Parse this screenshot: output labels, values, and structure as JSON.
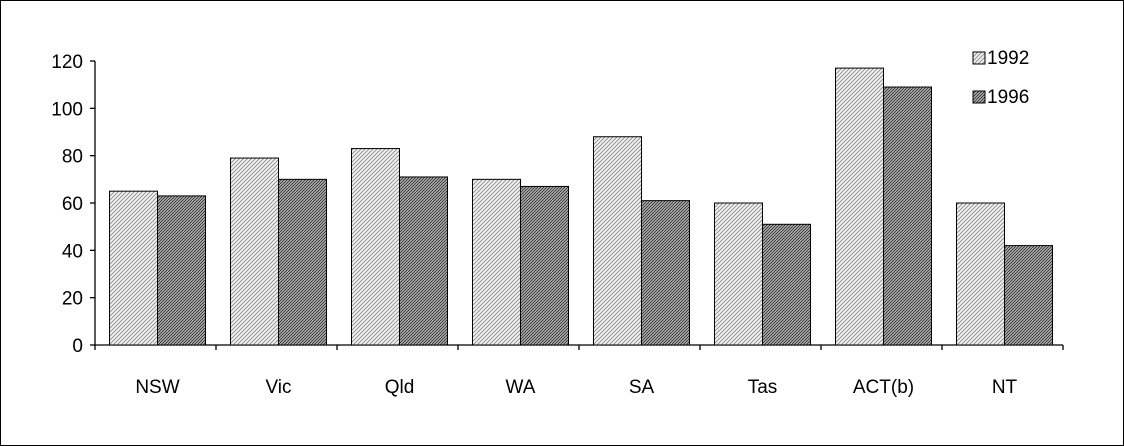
{
  "chart_data": {
    "type": "bar",
    "title": "",
    "xlabel": "",
    "ylabel": "",
    "categories": [
      "NSW",
      "Vic",
      "Qld",
      "WA",
      "SA",
      "Tas",
      "ACT(b)",
      "NT"
    ],
    "series": [
      {
        "name": "1992",
        "values": [
          65,
          79,
          83,
          70,
          88,
          60,
          117,
          60
        ]
      },
      {
        "name": "1996",
        "values": [
          63,
          70,
          71,
          67,
          61,
          51,
          109,
          42
        ]
      }
    ],
    "ylim": [
      0,
      120
    ],
    "yticks": [
      0,
      20,
      40,
      60,
      80,
      100,
      120
    ],
    "grid": false,
    "legend": "top-right"
  }
}
